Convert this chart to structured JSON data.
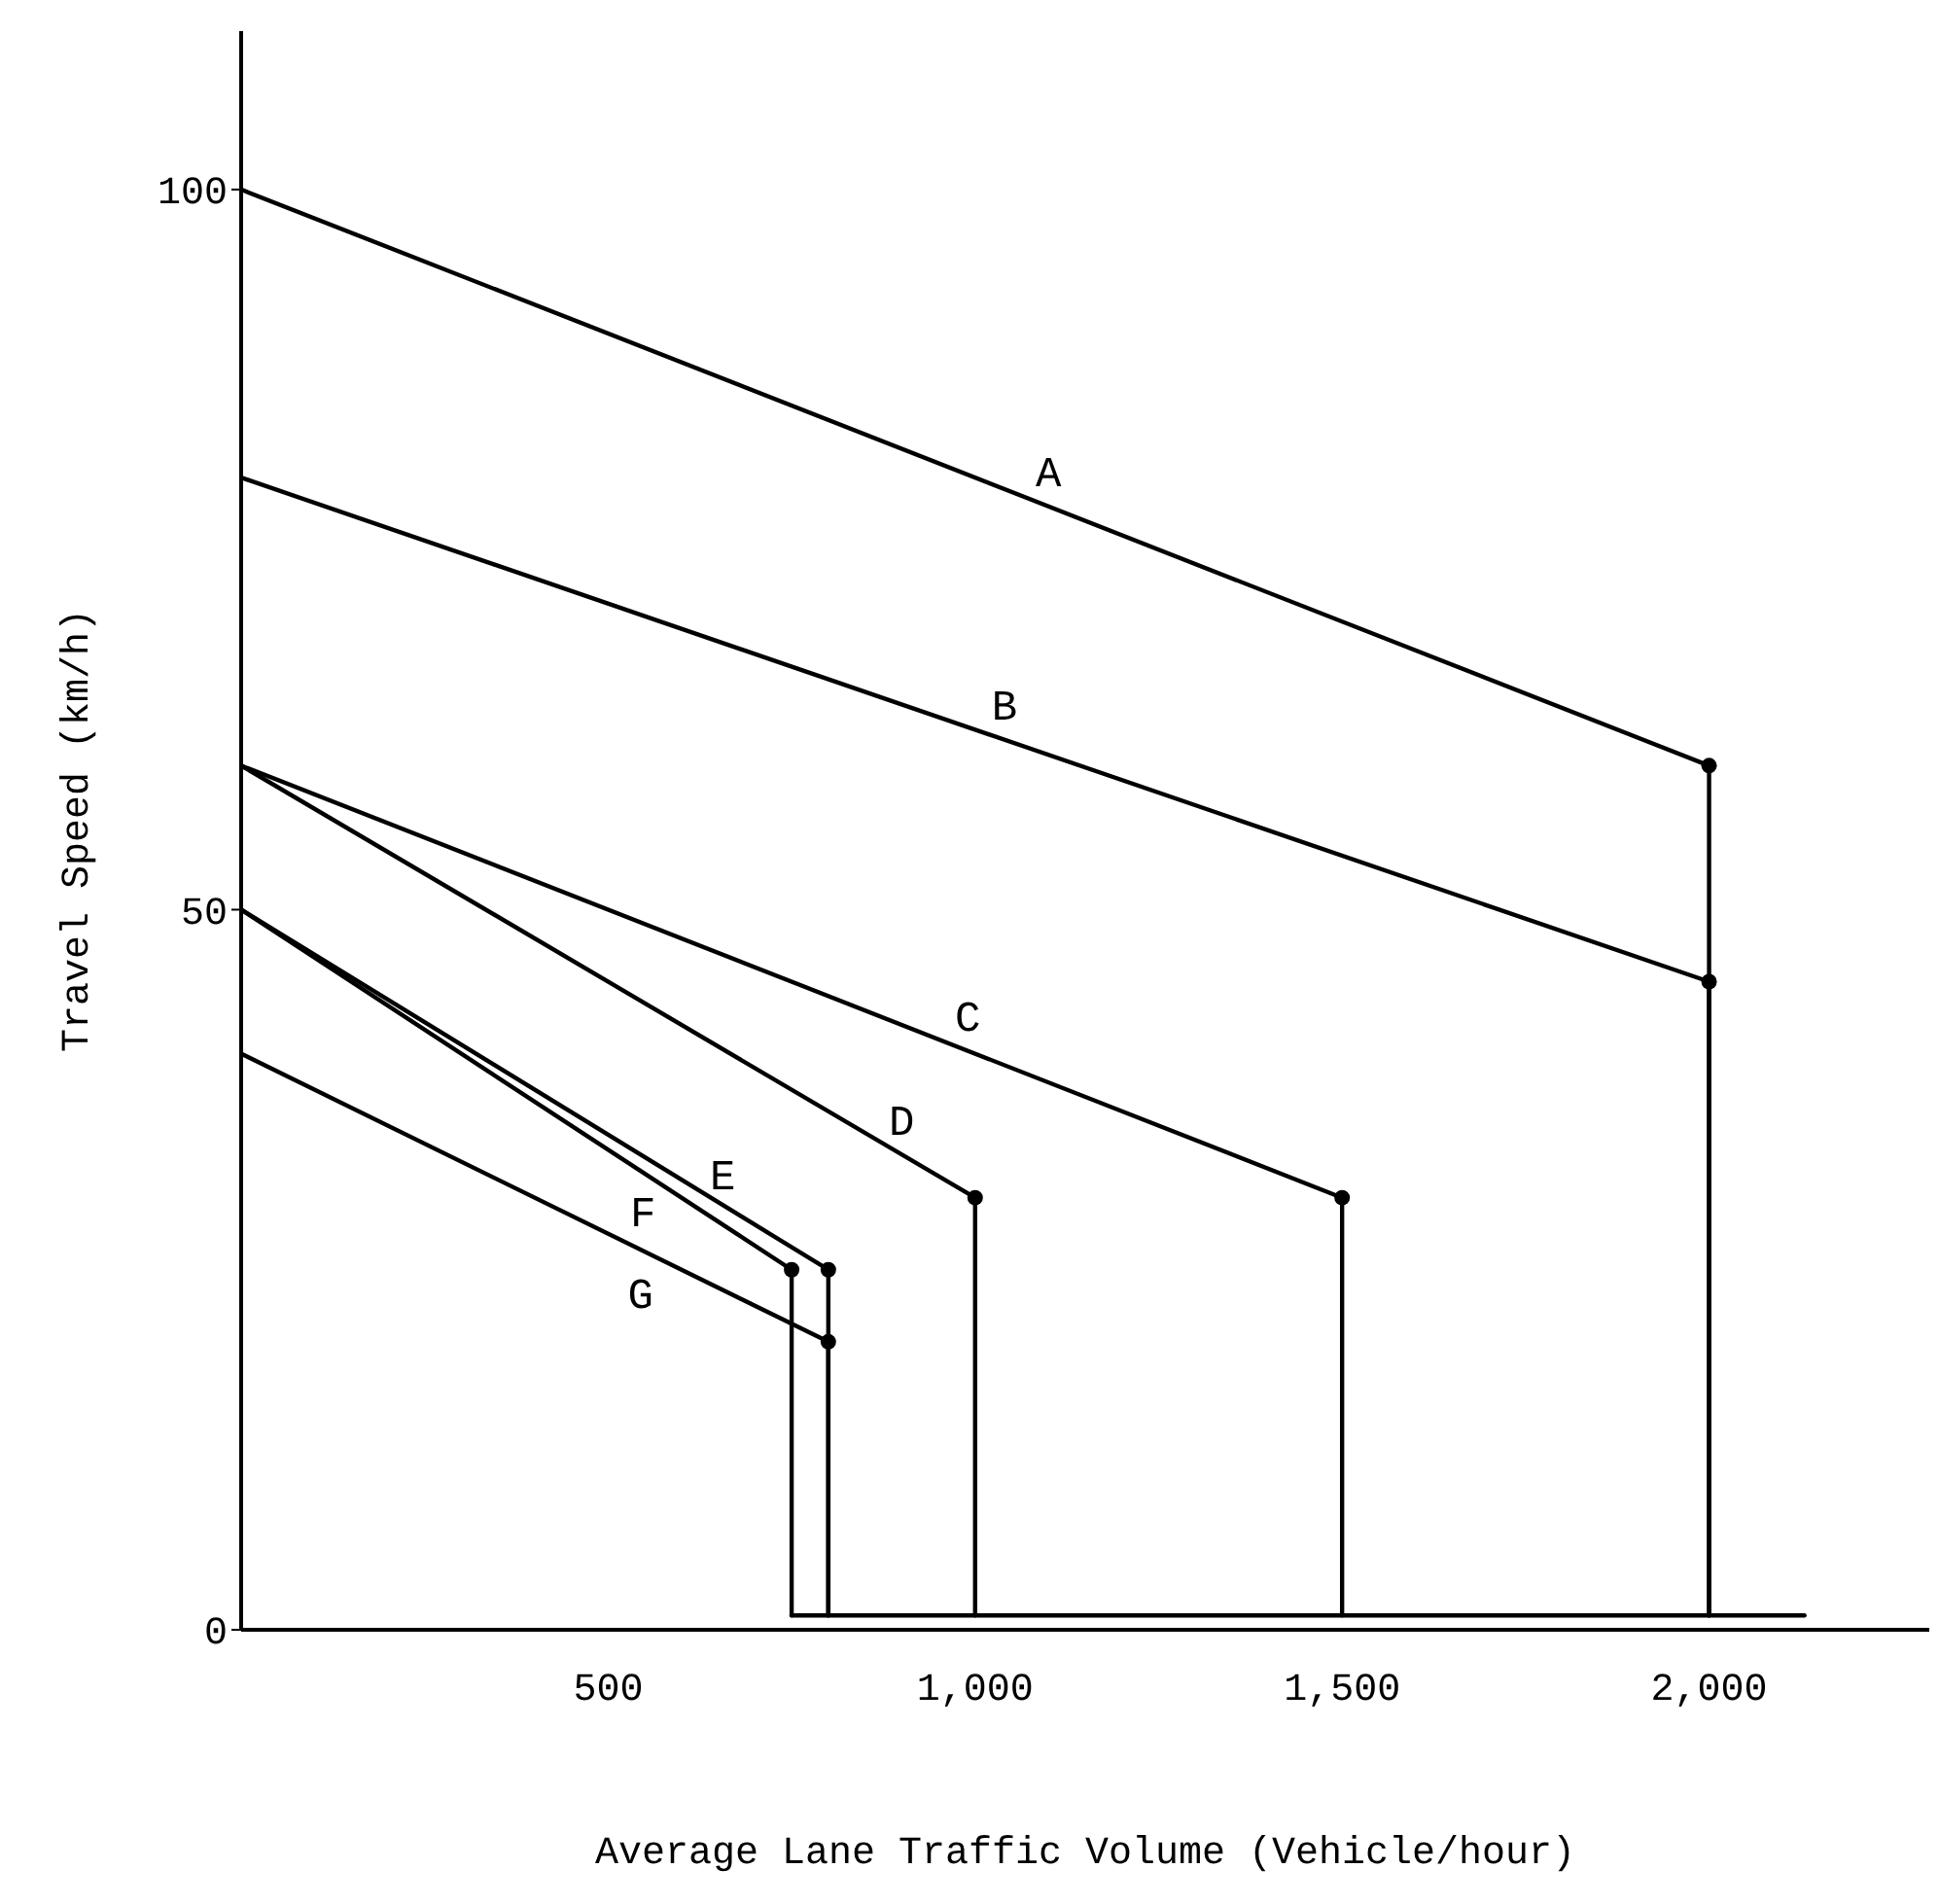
{
  "chart_data": {
    "type": "line",
    "xlabel": "Average Lane Traffic Volume  (Vehicle/hour)",
    "ylabel": "Travel Speed (km/h)",
    "xlim": [
      0,
      2300
    ],
    "ylim": [
      0,
      111
    ],
    "xticks": [
      {
        "value": 500,
        "label": "500"
      },
      {
        "value": 1000,
        "label": "1,000"
      },
      {
        "value": 1500,
        "label": "1,500"
      },
      {
        "value": 2000,
        "label": "2,000"
      }
    ],
    "yticks": [
      0,
      50,
      100
    ],
    "grid": false,
    "legend": false,
    "marker": "none",
    "line_style": "solid",
    "series": [
      {
        "name": "A",
        "color": "#000000",
        "x": [
          0,
          2000,
          2000
        ],
        "values": [
          100,
          60,
          1
        ]
      },
      {
        "name": "B",
        "color": "#000000",
        "x": [
          0,
          2000,
          2000
        ],
        "values": [
          80,
          45,
          1
        ]
      },
      {
        "name": "C",
        "color": "#000000",
        "x": [
          0,
          1500,
          1500
        ],
        "values": [
          60,
          30,
          1
        ]
      },
      {
        "name": "D",
        "color": "#000000",
        "x": [
          0,
          1000,
          1000
        ],
        "values": [
          60,
          30,
          1
        ]
      },
      {
        "name": "E",
        "color": "#000000",
        "x": [
          0,
          800,
          800
        ],
        "values": [
          50,
          25,
          1
        ]
      },
      {
        "name": "F",
        "color": "#000000",
        "x": [
          0,
          750,
          750
        ],
        "values": [
          50,
          25,
          1
        ]
      },
      {
        "name": "G",
        "color": "#000000",
        "x": [
          0,
          800,
          800
        ],
        "values": [
          40,
          20,
          1
        ]
      },
      {
        "color": "#000000",
        "x": [
          750,
          2130
        ],
        "values": [
          1,
          1
        ]
      },
      {
        "type": "scatter",
        "marker": "circle",
        "color": "#000000",
        "x": [
          2000,
          2000,
          1500,
          1000,
          800,
          750,
          800
        ],
        "values": [
          60,
          45,
          30,
          30,
          25,
          25,
          20
        ]
      }
    ]
  }
}
